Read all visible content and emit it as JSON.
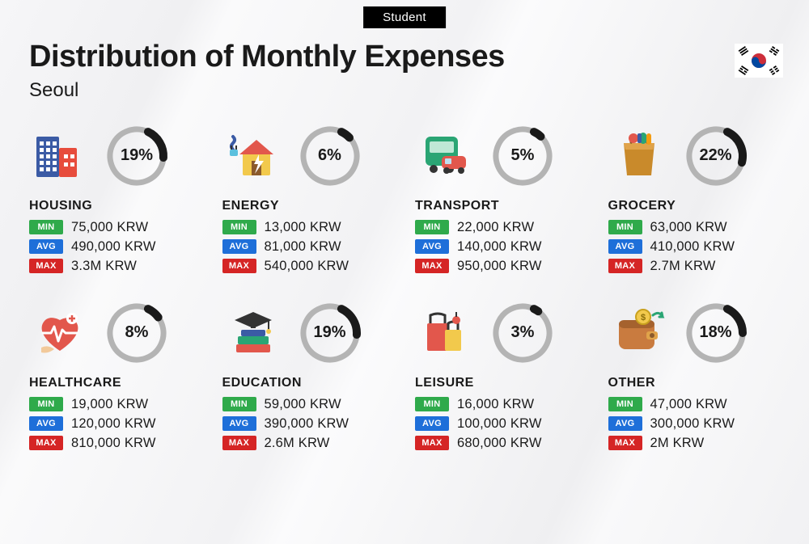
{
  "header": {
    "tag": "Student",
    "title": "Distribution of Monthly Expenses",
    "city": "Seoul"
  },
  "currency_suffix": " KRW",
  "donut": {
    "radius": 33,
    "stroke_width": 10,
    "track_color": "#b4b4b4",
    "fill_color": "#1a1a1a"
  },
  "badge_labels": {
    "min": "MIN",
    "avg": "AVG",
    "max": "MAX"
  },
  "badge_colors": {
    "min": "#2faa4b",
    "avg": "#1e6fd9",
    "max": "#d52525"
  },
  "categories": [
    {
      "key": "housing",
      "label": "HOUSING",
      "pct": 19,
      "min": "75,000",
      "avg": "490,000",
      "max": "3.3M"
    },
    {
      "key": "energy",
      "label": "ENERGY",
      "pct": 6,
      "min": "13,000",
      "avg": "81,000",
      "max": "540,000"
    },
    {
      "key": "transport",
      "label": "TRANSPORT",
      "pct": 5,
      "min": "22,000",
      "avg": "140,000",
      "max": "950,000"
    },
    {
      "key": "grocery",
      "label": "GROCERY",
      "pct": 22,
      "min": "63,000",
      "avg": "410,000",
      "max": "2.7M"
    },
    {
      "key": "healthcare",
      "label": "HEALTHCARE",
      "pct": 8,
      "min": "19,000",
      "avg": "120,000",
      "max": "810,000"
    },
    {
      "key": "education",
      "label": "EDUCATION",
      "pct": 19,
      "min": "59,000",
      "avg": "390,000",
      "max": "2.6M"
    },
    {
      "key": "leisure",
      "label": "LEISURE",
      "pct": 3,
      "min": "16,000",
      "avg": "100,000",
      "max": "680,000"
    },
    {
      "key": "other",
      "label": "OTHER",
      "pct": 18,
      "min": "47,000",
      "avg": "300,000",
      "max": "2M"
    }
  ],
  "flag": {
    "bg": "#ffffff",
    "circle_red": "#cd2e3a",
    "circle_blue": "#0047a0",
    "bar": "#000000"
  }
}
